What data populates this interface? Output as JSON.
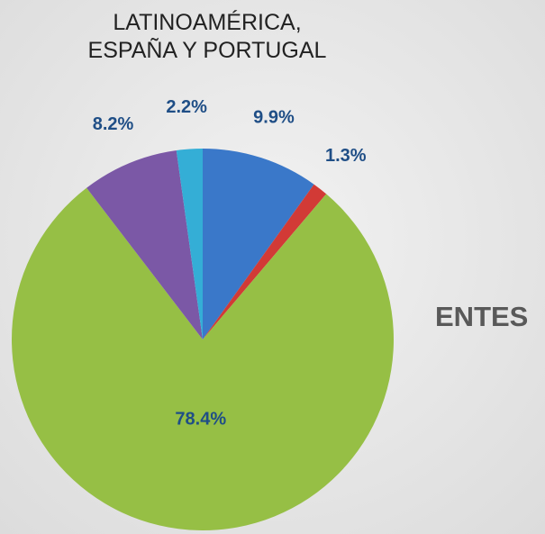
{
  "chart_data": {
    "type": "pie",
    "title": "LATINOAMÉRICA, ESPAÑA Y PORTUGAL",
    "annotation": "ENTES",
    "categories": [
      null,
      null,
      null,
      null,
      null
    ],
    "values": [
      9.9,
      1.3,
      78.4,
      8.2,
      2.2
    ],
    "value_labels": [
      "9.9%",
      "1.3%",
      "78.4%",
      "8.2%",
      "2.2%"
    ],
    "colors": [
      "#3a78c9",
      "#d23a36",
      "#96bf45",
      "#7b58a6",
      "#34aed6"
    ]
  }
}
